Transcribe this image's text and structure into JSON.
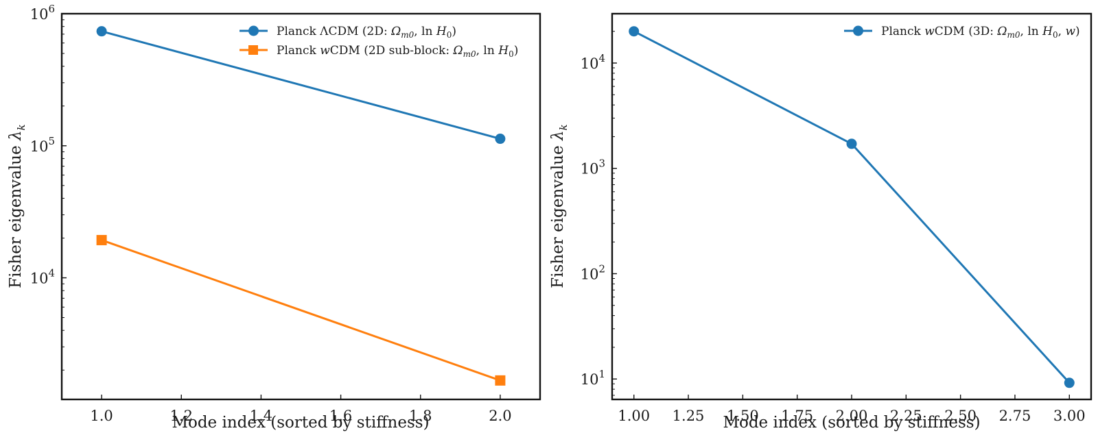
{
  "chart_data": [
    {
      "type": "line",
      "yscale": "log",
      "title": "",
      "xlabel": "Mode index (sorted by stiffness)",
      "ylabel": "Fisher eigenvalue λ_k",
      "ylabel_main": "Fisher eigenvalue ",
      "ylabel_symbol": "λ",
      "ylabel_sub": "k",
      "xlim": [
        0.9,
        2.1
      ],
      "ylim": [
        1200,
        1000000
      ],
      "xticks": [
        1.0,
        1.2,
        1.4,
        1.6,
        1.8,
        2.0
      ],
      "xtick_labels": [
        "1.0",
        "1.2",
        "1.4",
        "1.6",
        "1.8",
        "2.0"
      ],
      "yticks_major_exp": [
        4,
        5,
        6
      ],
      "grid": false,
      "legend_position": "top-right",
      "series": [
        {
          "name": "Planck ΛCDM (2D: Ω_m0, ln H_0)",
          "legend_prefix": "Planck ΛCDM (2D: ",
          "color": "#1f77b4",
          "marker": "circle",
          "x": [
            1,
            2
          ],
          "values": [
            736000,
            113000
          ]
        },
        {
          "name": "Planck wCDM (2D sub-block: Ω_m0, ln H_0)",
          "legend_prefix_a": "Planck ",
          "legend_italic": "w",
          "legend_prefix_b": "CDM (2D sub-block: ",
          "color": "#ff7f0e",
          "marker": "square",
          "x": [
            1,
            2
          ],
          "values": [
            19300,
            1670
          ]
        }
      ]
    },
    {
      "type": "line",
      "yscale": "log",
      "title": "",
      "xlabel": "Mode index (sorted by stiffness)",
      "ylabel": "Fisher eigenvalue λ_k",
      "ylabel_main": "Fisher eigenvalue ",
      "ylabel_symbol": "λ",
      "ylabel_sub": "k",
      "xlim": [
        0.9,
        3.1
      ],
      "ylim": [
        6.4,
        29400
      ],
      "xticks": [
        1.0,
        1.25,
        1.5,
        1.75,
        2.0,
        2.25,
        2.5,
        2.75,
        3.0
      ],
      "xtick_labels": [
        "1.00",
        "1.25",
        "1.50",
        "1.75",
        "2.00",
        "2.25",
        "2.50",
        "2.75",
        "3.00"
      ],
      "yticks_major_exp": [
        1,
        2,
        3,
        4
      ],
      "grid": false,
      "legend_position": "top-right",
      "series": [
        {
          "name": "Planck wCDM (3D: Ω_m0, ln H_0, w)",
          "legend_prefix_a": "Planck ",
          "legend_italic": "w",
          "legend_prefix_b": "CDM (3D: ",
          "color": "#1f77b4",
          "marker": "circle",
          "x": [
            1,
            2,
            3
          ],
          "values": [
            20000,
            1710,
            9.2
          ]
        }
      ]
    }
  ]
}
